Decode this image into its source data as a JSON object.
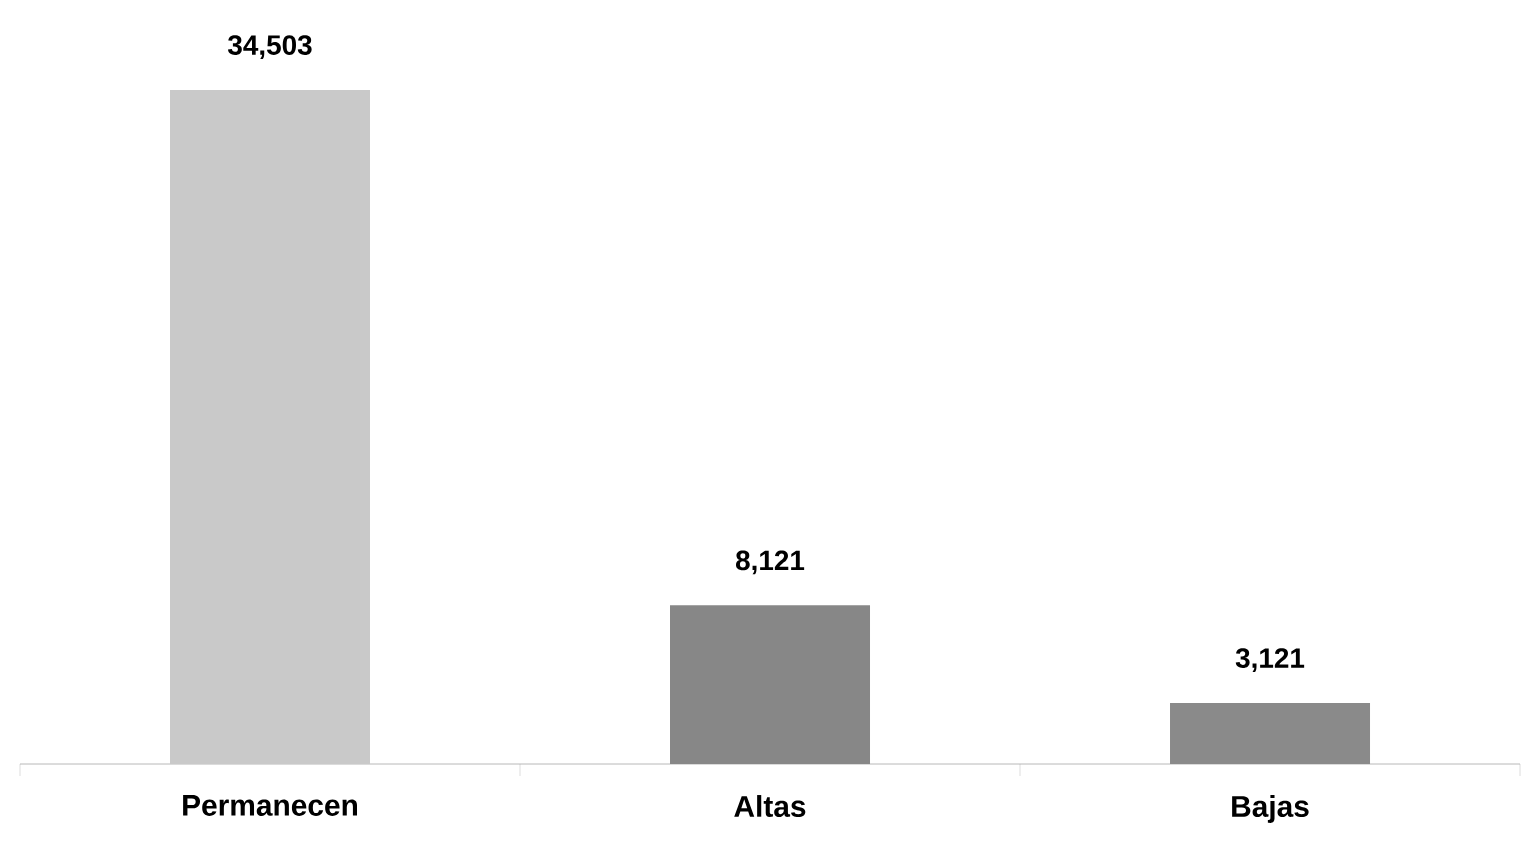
{
  "chart_data": {
    "type": "bar",
    "categories": [
      "Permanecen",
      "Altas",
      "Bajas"
    ],
    "values": [
      34503,
      8121,
      3121
    ],
    "colors": [
      "#c9c9c9",
      "#878787",
      "#8a8a8a"
    ],
    "value_labels": [
      "34,503",
      "8,121",
      "3,121"
    ]
  }
}
